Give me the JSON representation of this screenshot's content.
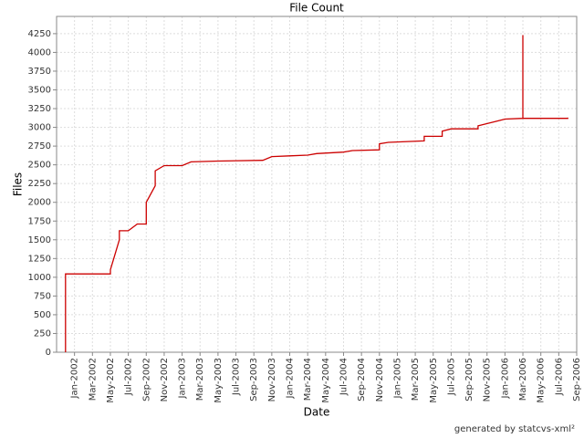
{
  "chart_data": {
    "type": "line",
    "title": "File Count",
    "x_label": "Date",
    "y_label": "Files",
    "footer": "generated by statcvs-xml²",
    "series": [
      {
        "name": "Files",
        "color": "#cc0000",
        "x": [
          "2001-12",
          "2001-12",
          "2002-05",
          "2002-05",
          "2002-06",
          "2002-06",
          "2002-07",
          "2002-08",
          "2002-09",
          "2002-09",
          "2002-10",
          "2002-10",
          "2002-11",
          "2003-01",
          "2003-02",
          "2003-05",
          "2003-10",
          "2003-11",
          "2004-01",
          "2004-03",
          "2004-04",
          "2004-07",
          "2004-08",
          "2004-11",
          "2004-11",
          "2004-12",
          "2005-04",
          "2005-04",
          "2005-06",
          "2005-06",
          "2005-07",
          "2005-10",
          "2005-10",
          "2005-12",
          "2006-01",
          "2006-03",
          "2006-03",
          "2006-03",
          "2006-08",
          "2006-08"
        ],
        "values": [
          0,
          1045,
          1045,
          1100,
          1500,
          1620,
          1620,
          1710,
          1710,
          2000,
          2220,
          2420,
          2490,
          2490,
          2540,
          2550,
          2560,
          2610,
          2620,
          2630,
          2650,
          2670,
          2690,
          2700,
          2780,
          2800,
          2820,
          2880,
          2880,
          2950,
          2980,
          2980,
          3020,
          3080,
          3110,
          3120,
          4230,
          3120,
          3120,
          3130
        ]
      }
    ],
    "xlim": [
      "2001-11",
      "2006-09"
    ],
    "xticks": [
      {
        "value": "2002-01",
        "label": "Jan-2002"
      },
      {
        "value": "2002-03",
        "label": "Mar-2002"
      },
      {
        "value": "2002-05",
        "label": "May-2002"
      },
      {
        "value": "2002-07",
        "label": "Jul-2002"
      },
      {
        "value": "2002-09",
        "label": "Sep-2002"
      },
      {
        "value": "2002-11",
        "label": "Nov-2002"
      },
      {
        "value": "2003-01",
        "label": "Jan-2003"
      },
      {
        "value": "2003-03",
        "label": "Mar-2003"
      },
      {
        "value": "2003-05",
        "label": "May-2003"
      },
      {
        "value": "2003-07",
        "label": "Jul-2003"
      },
      {
        "value": "2003-09",
        "label": "Sep-2003"
      },
      {
        "value": "2003-11",
        "label": "Nov-2003"
      },
      {
        "value": "2004-01",
        "label": "Jan-2004"
      },
      {
        "value": "2004-03",
        "label": "Mar-2004"
      },
      {
        "value": "2004-05",
        "label": "May-2004"
      },
      {
        "value": "2004-07",
        "label": "Jul-2004"
      },
      {
        "value": "2004-09",
        "label": "Sep-2004"
      },
      {
        "value": "2004-11",
        "label": "Nov-2004"
      },
      {
        "value": "2005-01",
        "label": "Jan-2005"
      },
      {
        "value": "2005-03",
        "label": "Mar-2005"
      },
      {
        "value": "2005-05",
        "label": "May-2005"
      },
      {
        "value": "2005-07",
        "label": "Jul-2005"
      },
      {
        "value": "2005-09",
        "label": "Sep-2005"
      },
      {
        "value": "2005-11",
        "label": "Nov-2005"
      },
      {
        "value": "2006-01",
        "label": "Jan-2006"
      },
      {
        "value": "2006-03",
        "label": "Mar-2006"
      },
      {
        "value": "2006-05",
        "label": "May-2006"
      },
      {
        "value": "2006-07",
        "label": "Jul-2006"
      },
      {
        "value": "2006-09",
        "label": "Sep-2006"
      }
    ],
    "ylim": [
      0,
      4480
    ],
    "yticks": [
      0,
      250,
      500,
      750,
      1000,
      1250,
      1500,
      1750,
      2000,
      2250,
      2500,
      2750,
      3000,
      3250,
      3500,
      3750,
      4000,
      4250
    ],
    "grid": true
  }
}
